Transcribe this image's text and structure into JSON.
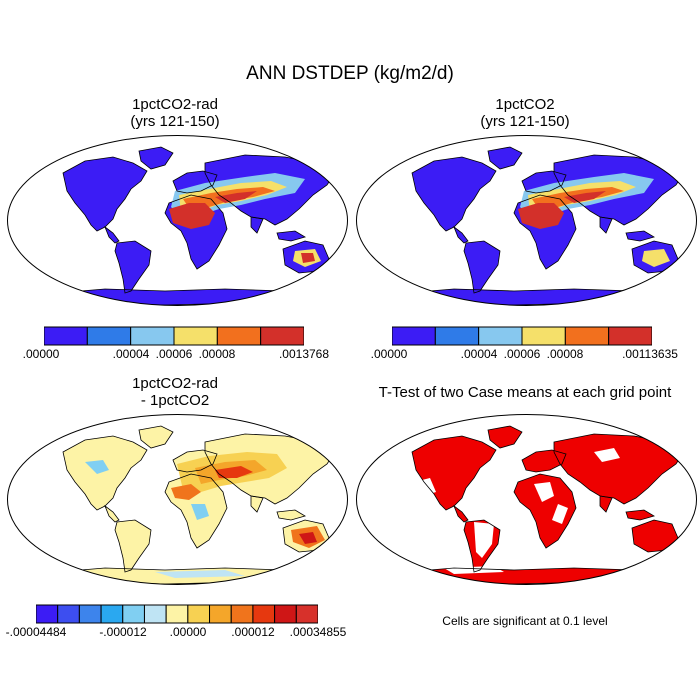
{
  "title": "ANN DSTDEP (kg/m2/d)",
  "panels": [
    {
      "id": "tl",
      "title_lines": [
        "1pctCO2-rad",
        "(yrs 121-150)"
      ],
      "colorbar": {
        "colors": [
          "#3c1cf5",
          "#2f7be8",
          "#87c8ef",
          "#f5e06a",
          "#f2701e",
          "#d3302a"
        ],
        "labels": [
          ".00000",
          ".00004",
          ".00006",
          ".00008",
          ".0013768"
        ]
      }
    },
    {
      "id": "tr",
      "title_lines": [
        "1pctCO2",
        "(yrs 121-150)"
      ],
      "colorbar": {
        "colors": [
          "#3c1cf5",
          "#2f7be8",
          "#87c8ef",
          "#f5e06a",
          "#f2701e",
          "#d3302a"
        ],
        "labels": [
          ".00000",
          ".00004",
          ".00006",
          ".00008",
          ".00113635"
        ]
      }
    },
    {
      "id": "bl",
      "title_lines": [
        "1pctCO2-rad",
        "- 1pctCO2"
      ],
      "colorbar": {
        "colors": [
          "#3c1cf5",
          "#3d4ef0",
          "#3d84ec",
          "#2aa8f0",
          "#80cff2",
          "#bfe4f4",
          "#fdf3a6",
          "#f7d152",
          "#f4a62a",
          "#f0741c",
          "#e6380f",
          "#cf1616",
          "#d7312b"
        ],
        "labels": [
          "-.00004484",
          "-.000012",
          ".00000",
          ".000012",
          ".00034855"
        ]
      }
    },
    {
      "id": "br",
      "title_lines": [
        "T-Test of two Case means at each grid point"
      ],
      "note": "Cells are significant at 0.1 level",
      "fill": "#ee0000"
    }
  ]
}
